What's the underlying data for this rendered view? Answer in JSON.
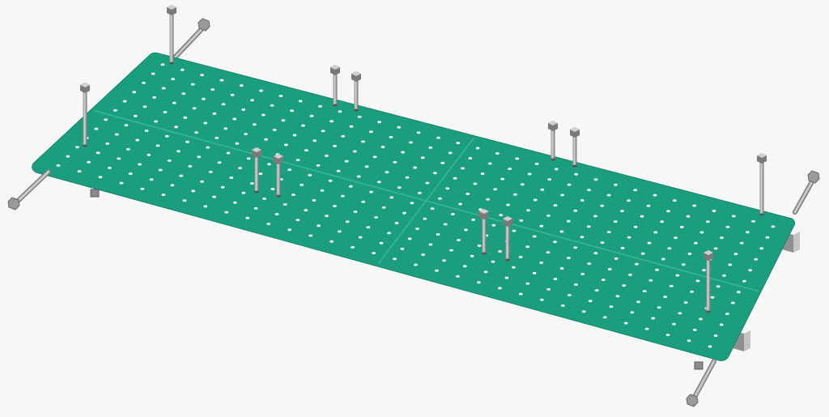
{
  "scene": {
    "background": "#f7f7f7",
    "panel_color": "#1b9e7e",
    "panel_edge_color": "#15856a",
    "seam_color": "#3fb898",
    "hole_color": "#ffffff",
    "bolt_light": "#d0d0d0",
    "bolt_dark": "#7a7a7a",
    "panel_count": 4,
    "hole_rows": 12,
    "hole_cols": 32,
    "standing_bolt_count": 12,
    "rod_count": 4
  }
}
